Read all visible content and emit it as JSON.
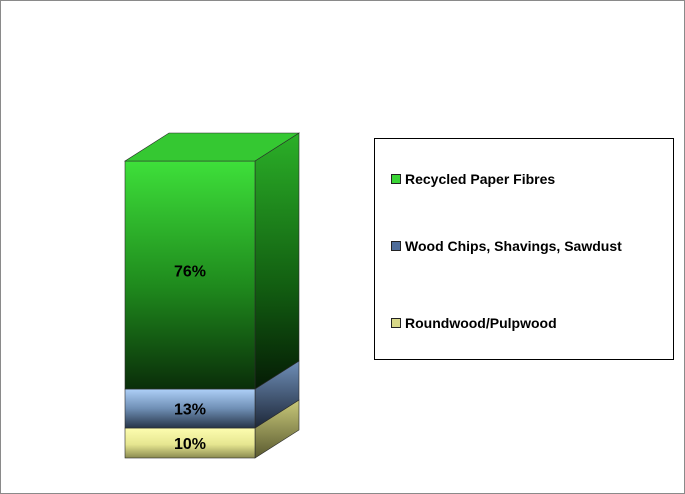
{
  "chart_data": {
    "type": "bar",
    "stacked": true,
    "three_d": true,
    "categories": [
      ""
    ],
    "series": [
      {
        "name": "Roundwood/Pulpwood",
        "values": [
          10
        ],
        "label": "10%",
        "color": "#fbfba0"
      },
      {
        "name": "Wood Chips, Shavings, Sawdust",
        "values": [
          13
        ],
        "label": "13%",
        "color": "#9cc3f5"
      },
      {
        "name": "Recycled Paper Fibres",
        "values": [
          76
        ],
        "label": "76%",
        "color": "#3ad436"
      }
    ],
    "unit": "%",
    "legend_position": "right",
    "grid": false
  },
  "legend": {
    "items": [
      {
        "label": "Recycled Paper Fibres",
        "color": "#3ad436"
      },
      {
        "label": "Wood Chips, Shavings, Sawdust",
        "color": "#4f6d9a"
      },
      {
        "label": "Roundwood/Pulpwood",
        "color": "#d8d888"
      }
    ]
  }
}
